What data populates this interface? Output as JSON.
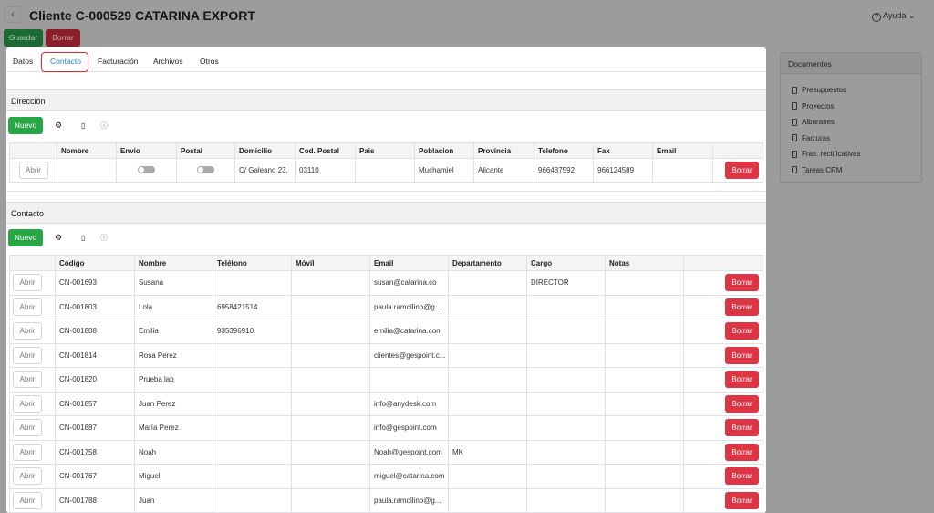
{
  "header": {
    "back": "‹",
    "title": "Cliente C-000529 CATARINA EXPORT",
    "help": "Ayuda",
    "help_icon": "?",
    "chevron": "⌄"
  },
  "actions": {
    "save": "Guardar",
    "delete": "Borrar"
  },
  "tabs": [
    "Datos",
    "Contacto",
    "Facturación",
    "Archivos",
    "Otros"
  ],
  "direccion": {
    "title": "Dirección",
    "new": "Nuevo",
    "columns": [
      "",
      "Nombre",
      "Envio",
      "Postal",
      "Domicilio",
      "Cod. Postal",
      "Pais",
      "Poblacion",
      "Provincia",
      "Telefono",
      "Fax",
      "Email",
      ""
    ],
    "rows": [
      {
        "open": "Abrir",
        "nombre": "",
        "envio": false,
        "postal": false,
        "domicilio": "C/ Galeano 23,",
        "cp": "03110",
        "pais": "",
        "poblacion": "Muchamiel",
        "provincia": "Alicante",
        "telefono": "966487592",
        "fax": "966124589",
        "email": "",
        "delete": "Borrar"
      }
    ]
  },
  "contacto": {
    "title": "Contacto",
    "new": "Nuevo",
    "columns": [
      "",
      "Código",
      "Nombre",
      "Teléfono",
      "Móvil",
      "Email",
      "Departamento",
      "Cargo",
      "Notas",
      ""
    ],
    "rows": [
      [
        "CN-001693",
        "Susana",
        "",
        "",
        "susan@catarina.co",
        "",
        "DIRECTOR",
        ""
      ],
      [
        "CN-001803",
        "Lola",
        "6958421514",
        "",
        "paula.ramollino@g...",
        "",
        "",
        ""
      ],
      [
        "CN-001808",
        "Emilia",
        "935396910",
        "",
        "emilia@catarina.con",
        "",
        "",
        ""
      ],
      [
        "CN-001814",
        "Rosa Perez",
        "",
        "",
        "clientes@gespoint.c...",
        "",
        "",
        ""
      ],
      [
        "CN-001820",
        "Prueba lab",
        "",
        "",
        "",
        "",
        "",
        ""
      ],
      [
        "CN-001857",
        "Juan Perez",
        "",
        "",
        "info@anydesk.com",
        "",
        "",
        ""
      ],
      [
        "CN-001887",
        "María Perez",
        "",
        "",
        "info@gespoint.com",
        "",
        "",
        ""
      ],
      [
        "CN-001758",
        "Noah",
        "",
        "",
        "Noah@gespoint.com",
        "MK",
        "",
        ""
      ],
      [
        "CN-001767",
        "Miguel",
        "",
        "",
        "miguel@catarina.com",
        "",
        "",
        ""
      ],
      [
        "CN-001788",
        "Juan",
        "",
        "",
        "paula.ramollino@g...",
        "",
        "",
        ""
      ]
    ],
    "open": "Abrir",
    "delete": "Borrar"
  },
  "documentos": {
    "title": "Documentos",
    "items": [
      "Presupuestos",
      "Proyectos",
      "Albaranes",
      "Facturas",
      "Fras. rectificativas",
      "Tareas CRM"
    ]
  }
}
